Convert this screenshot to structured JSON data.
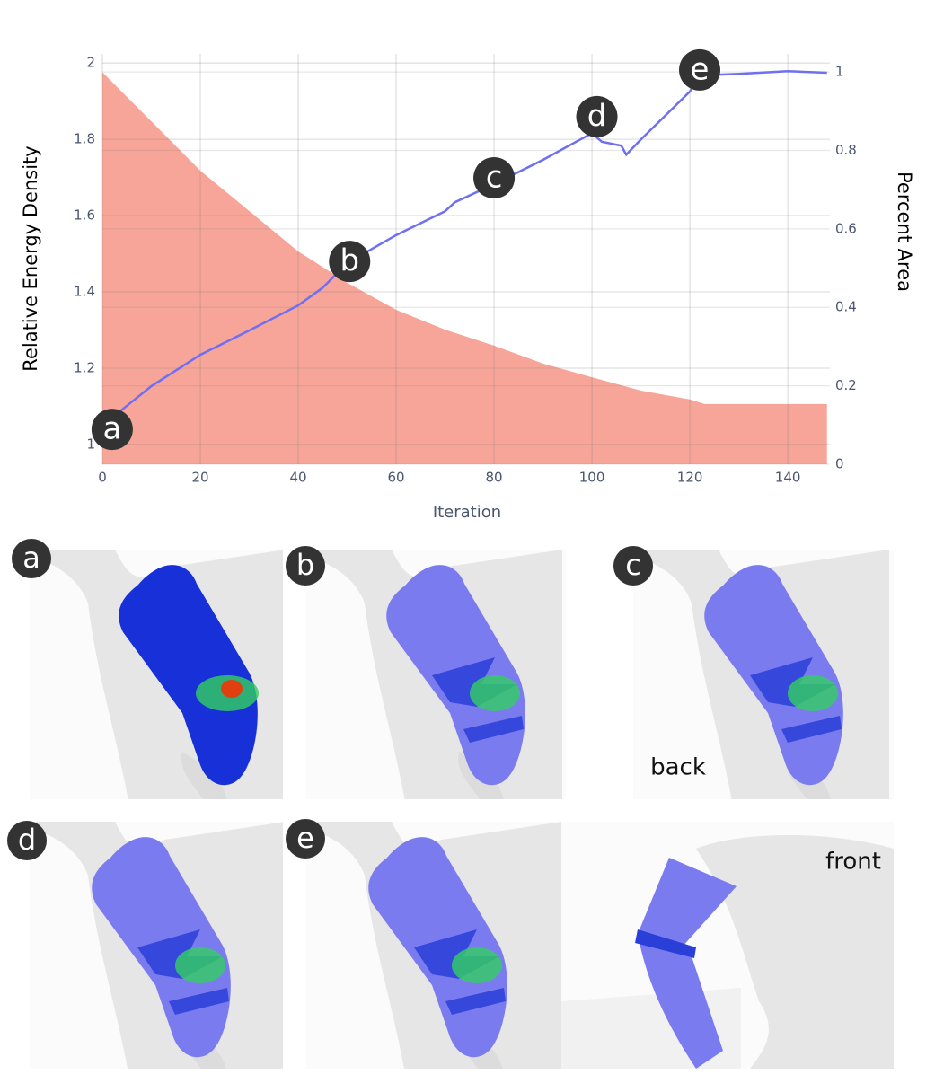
{
  "chart_data": {
    "type": "line",
    "xlabel": "Iteration",
    "ylabel": "Relative Energy Density",
    "y2label": "Percent Area",
    "xlim": [
      0,
      148.6
    ],
    "xticks": [
      0,
      20,
      40,
      60,
      80,
      100,
      120,
      140
    ],
    "ylim": [
      0.948,
      2.024
    ],
    "yticks": [
      1,
      1.2,
      1.4,
      1.6,
      1.8,
      2
    ],
    "y2lim": [
      0,
      1.046
    ],
    "y2ticks": [
      0,
      0.2,
      0.4,
      0.6,
      0.8,
      1
    ],
    "grid": true,
    "series": [
      {
        "color": "#f6a598",
        "fill": true,
        "x": [
          0,
          10,
          20,
          30,
          40,
          50,
          60,
          70,
          80,
          90,
          100,
          110,
          120,
          123,
          148
        ],
        "values": [
          1.976,
          1.847,
          1.718,
          1.612,
          1.506,
          1.424,
          1.353,
          1.301,
          1.259,
          1.212,
          1.176,
          1.141,
          1.118,
          1.106,
          1.106
        ]
      },
      {
        "color": "#6f6ff2",
        "axis": "y2",
        "x": [
          2,
          10,
          20,
          30,
          40,
          45,
          50,
          60,
          70,
          72,
          80,
          90,
          100,
          102,
          106,
          107,
          110,
          120,
          122,
          130,
          140,
          148
        ],
        "values": [
          0.119,
          0.199,
          0.279,
          0.341,
          0.405,
          0.45,
          0.513,
          0.584,
          0.645,
          0.668,
          0.714,
          0.776,
          0.844,
          0.822,
          0.812,
          0.789,
          0.828,
          0.95,
          0.991,
          0.995,
          1.002,
          0.998
        ]
      }
    ],
    "annotations": [
      {
        "text": "a",
        "x": 2,
        "y": 0.089,
        "axis": "y2"
      },
      {
        "text": "b",
        "x": 50.5,
        "y": 0.517,
        "axis": "y2"
      },
      {
        "text": "c",
        "x": 80,
        "y": 0.73,
        "axis": "y2"
      },
      {
        "text": "d",
        "x": 101,
        "y": 0.886,
        "axis": "y2"
      },
      {
        "text": "e",
        "x": 122,
        "y": 1.005,
        "axis": "y2"
      }
    ]
  },
  "panels": [
    {
      "label": "a"
    },
    {
      "label": "b"
    },
    {
      "label": "c",
      "note": "back"
    },
    {
      "label": "d"
    },
    {
      "label": "e"
    },
    {
      "note": "front"
    }
  ]
}
